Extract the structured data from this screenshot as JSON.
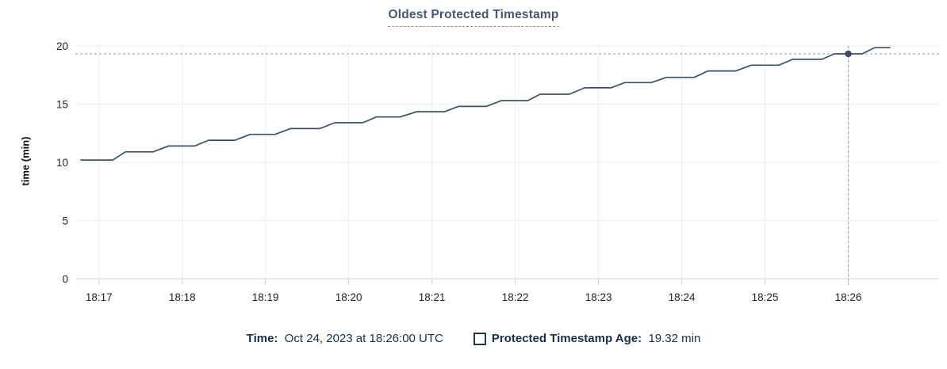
{
  "title": {
    "text": "Oldest Protected Timestamp"
  },
  "y_axis": {
    "label": "time (min)"
  },
  "tooltip": {
    "time_label": "Time:",
    "time_value": "Oct 24, 2023 at 18:26:00 UTC",
    "series_label": "Protected Timestamp Age:",
    "series_value": "19.32 min"
  },
  "colors": {
    "line": "#40506a",
    "marker": "#3c4c66",
    "title": "#475872",
    "legend_text": "#16304a",
    "legend_chip_border": "#1e3a52",
    "grid": "#ededed",
    "baseline": "#d4d4d4",
    "tick_stub": "#cccccc",
    "axis_text": "#242424",
    "crosshair": "#9db0c3"
  },
  "chart_data": {
    "type": "line",
    "title": "Oldest Protected Timestamp",
    "xlabel": "",
    "ylabel": "time (min)",
    "ylim": [
      0,
      20
    ],
    "yticks": [
      0,
      5,
      10,
      15,
      20
    ],
    "xticks": [
      "18:17",
      "18:18",
      "18:19",
      "18:20",
      "18:21",
      "18:22",
      "18:23",
      "18:24",
      "18:25",
      "18:26"
    ],
    "x_domain": [
      "18:16:43",
      "18:27:06"
    ],
    "grid": true,
    "legend_position": "bottom",
    "series": [
      {
        "name": "Protected Timestamp Age",
        "unit": "min",
        "points": [
          [
            "18:16:47",
            10.2
          ],
          [
            "18:17:10",
            10.2
          ],
          [
            "18:17:19",
            10.9
          ],
          [
            "18:17:39",
            10.9
          ],
          [
            "18:17:50",
            11.4
          ],
          [
            "18:18:09",
            11.4
          ],
          [
            "18:18:19",
            11.9
          ],
          [
            "18:18:38",
            11.9
          ],
          [
            "18:18:49",
            12.4
          ],
          [
            "18:19:07",
            12.4
          ],
          [
            "18:19:18",
            12.9
          ],
          [
            "18:19:39",
            12.9
          ],
          [
            "18:19:50",
            13.4
          ],
          [
            "18:20:10",
            13.4
          ],
          [
            "18:20:20",
            13.9
          ],
          [
            "18:20:37",
            13.9
          ],
          [
            "18:20:49",
            14.35
          ],
          [
            "18:21:09",
            14.35
          ],
          [
            "18:21:19",
            14.8
          ],
          [
            "18:21:39",
            14.8
          ],
          [
            "18:21:50",
            15.3
          ],
          [
            "18:22:09",
            15.3
          ],
          [
            "18:22:18",
            15.85
          ],
          [
            "18:22:39",
            15.85
          ],
          [
            "18:22:50",
            16.4
          ],
          [
            "18:23:09",
            16.4
          ],
          [
            "18:23:19",
            16.85
          ],
          [
            "18:23:38",
            16.85
          ],
          [
            "18:23:49",
            17.3
          ],
          [
            "18:24:09",
            17.3
          ],
          [
            "18:24:19",
            17.85
          ],
          [
            "18:24:39",
            17.85
          ],
          [
            "18:24:50",
            18.35
          ],
          [
            "18:25:10",
            18.35
          ],
          [
            "18:25:20",
            18.85
          ],
          [
            "18:25:41",
            18.85
          ],
          [
            "18:25:50",
            19.32
          ],
          [
            "18:26:10",
            19.32
          ],
          [
            "18:26:19",
            19.85
          ],
          [
            "18:26:30",
            19.85
          ]
        ]
      }
    ],
    "crosshair": {
      "x": "18:26:00",
      "y": 19.32
    }
  }
}
